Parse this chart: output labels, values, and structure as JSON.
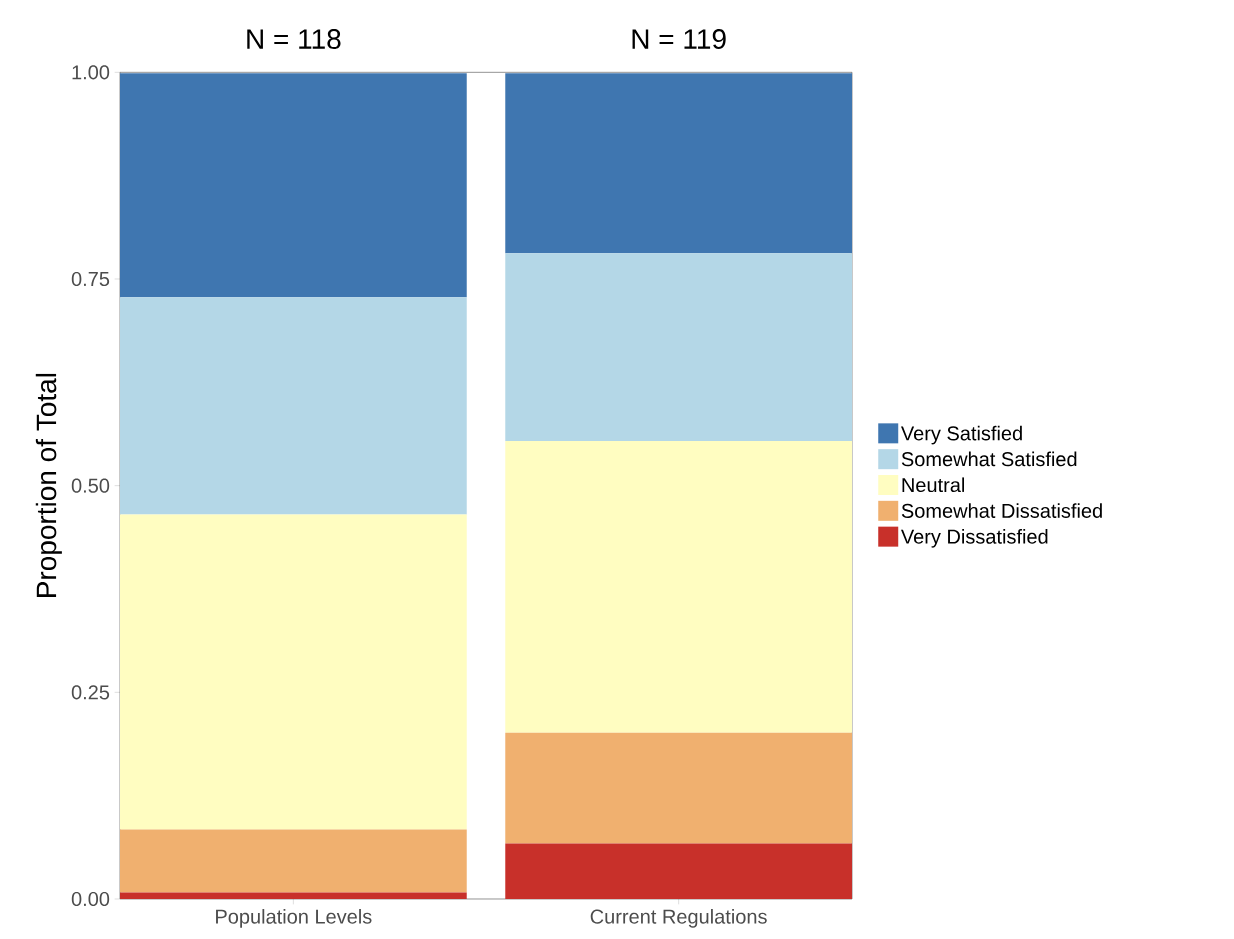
{
  "chart_data": {
    "type": "bar",
    "stacked": true,
    "ylabel": "Proportion of Total",
    "categories": [
      "Population Levels",
      "Current Regulations"
    ],
    "series": [
      {
        "name": "Very Dissatisfied",
        "color": "#c8302a",
        "values": [
          0.008,
          0.067
        ]
      },
      {
        "name": "Somewhat Dissatisfied",
        "color": "#f0b06f",
        "values": [
          0.076,
          0.134
        ]
      },
      {
        "name": "Neutral",
        "color": "#fffdc1",
        "values": [
          0.381,
          0.353
        ]
      },
      {
        "name": "Somewhat Satisfied",
        "color": "#b4d7e7",
        "values": [
          0.263,
          0.227
        ]
      },
      {
        "name": "Very Satisfied",
        "color": "#3f76b0",
        "values": [
          0.271,
          0.218
        ]
      }
    ],
    "ylim": [
      0,
      1
    ],
    "yticks": [
      {
        "value": 0,
        "label": "0.00"
      },
      {
        "value": 0.25,
        "label": "0.25"
      },
      {
        "value": 0.5,
        "label": "0.50"
      },
      {
        "value": 0.75,
        "label": "0.75"
      },
      {
        "value": 1,
        "label": "1.00"
      }
    ],
    "annotations": [
      "N = 118",
      "N = 119"
    ],
    "legend": "right",
    "grid": false
  }
}
